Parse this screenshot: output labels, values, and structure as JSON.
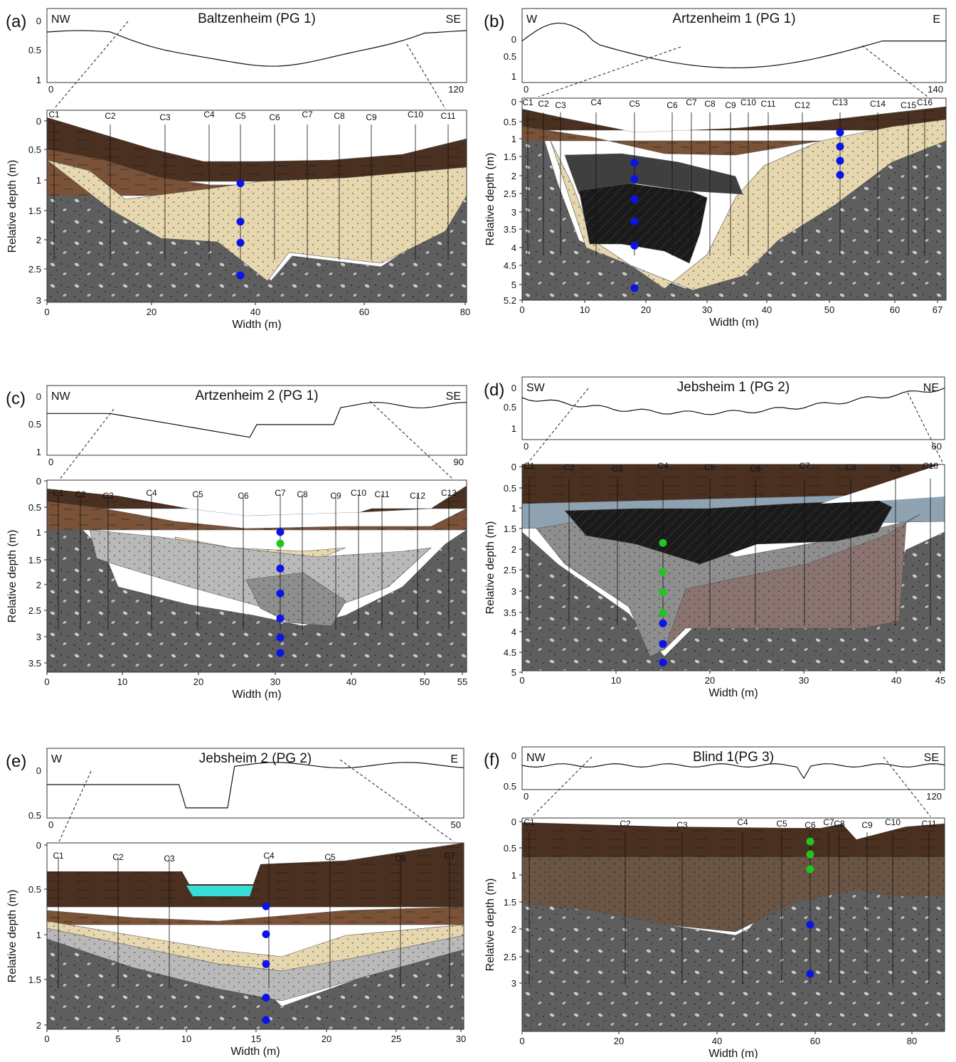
{
  "colors": {
    "topsoil": "#4a3020",
    "brown": "#7a5238",
    "sand": "#e6d7ae",
    "gravel": "#5e5e5e",
    "grey_silt": "#b9b9b9",
    "mid_grey": "#8e8e8e",
    "peat": "#1a1a1a",
    "dark_grey": "#3f3f3f",
    "blue_clay": "#8ea2b2",
    "pink": "#8a7470",
    "mid_brown": "#6a5444",
    "water": "#38dcd9",
    "sample_blue": "#0a14e6",
    "sample_green": "#22c422"
  },
  "panels": [
    {
      "label": "(a)",
      "title": "Baltzenheim (PG 1)",
      "dir_left": "NW",
      "dir_right": "SE",
      "profile_yticks": [
        "0",
        "0.5",
        "1"
      ],
      "profile_xticks": [
        "0",
        "120"
      ],
      "depth_ticks": [
        "0",
        "0.5",
        "1",
        "1.5",
        "2",
        "2.5",
        "3"
      ],
      "width_ticks": [
        "0",
        "20",
        "40",
        "60",
        "80"
      ],
      "ylabel": "Relative depth (m)",
      "xlabel": "Width (m)",
      "cores": [
        "C1",
        "C2",
        "C3",
        "C4",
        "C5",
        "C6",
        "C7",
        "C8",
        "C9",
        "C10",
        "C11"
      ]
    },
    {
      "label": "(b)",
      "title": "Artzenheim 1 (PG 1)",
      "dir_left": "W",
      "dir_right": "E",
      "profile_yticks": [
        "0",
        "0.5",
        "1"
      ],
      "profile_xticks": [
        "0",
        "140"
      ],
      "depth_ticks": [
        "0",
        "0.5",
        "1",
        "1.5",
        "2",
        "2.5",
        "3",
        "3.5",
        "4",
        "4.5",
        "5",
        "5.2"
      ],
      "width_ticks": [
        "0",
        "10",
        "20",
        "30",
        "40",
        "50",
        "60",
        "67"
      ],
      "ylabel": "Relative depth (m)",
      "xlabel": "Width (m)",
      "cores": [
        "C1",
        "C2",
        "C3",
        "C4",
        "C5",
        "C6",
        "C7",
        "C8",
        "C9",
        "C10",
        "C11",
        "C12",
        "C13",
        "C14",
        "C15",
        "C16"
      ]
    },
    {
      "label": "(c)",
      "title": "Artzenheim 2 (PG 1)",
      "dir_left": "NW",
      "dir_right": "SE",
      "profile_yticks": [
        "0",
        "0.5",
        "1"
      ],
      "profile_xticks": [
        "0",
        "90"
      ],
      "depth_ticks": [
        "0",
        "0.5",
        "1",
        "1.5",
        "2",
        "2.5",
        "3",
        "3.5"
      ],
      "width_ticks": [
        "0",
        "10",
        "20",
        "30",
        "40",
        "50",
        "55"
      ],
      "ylabel": "Relative depth (m)",
      "xlabel": "Width (m)",
      "cores": [
        "C1",
        "C2",
        "C3",
        "C4",
        "C5",
        "C6",
        "C7",
        "C8",
        "C9",
        "C10",
        "C11",
        "C12",
        "C13"
      ]
    },
    {
      "label": "(d)",
      "title": "Jebsheim 1 (PG 2)",
      "dir_left": "SW",
      "dir_right": "NE",
      "profile_yticks": [
        "0",
        "0.5",
        "1"
      ],
      "profile_xticks": [
        "0",
        "60"
      ],
      "depth_ticks": [
        "0",
        "0.5",
        "1",
        "1.5",
        "2",
        "2.5",
        "3",
        "3.5",
        "4",
        "4.5",
        "5"
      ],
      "width_ticks": [
        "0",
        "10",
        "20",
        "30",
        "40",
        "45"
      ],
      "ylabel": "Relative depth (m)",
      "xlabel": "Width (m)",
      "cores": [
        "C1",
        "C2",
        "C3",
        "C4",
        "C5",
        "C6",
        "C7",
        "C8",
        "C9",
        "C10"
      ]
    },
    {
      "label": "(e)",
      "title": "Jebsheim 2 (PG 2)",
      "dir_left": "W",
      "dir_right": "E",
      "profile_yticks": [
        "0",
        "0.5"
      ],
      "profile_xticks": [
        "0",
        "50"
      ],
      "depth_ticks": [
        "0",
        "0.5",
        "1",
        "1.5",
        "2"
      ],
      "width_ticks": [
        "0",
        "5",
        "10",
        "15",
        "20",
        "25",
        "30"
      ],
      "ylabel": "Relative depth (m)",
      "xlabel": "Width (m)",
      "cores": [
        "C1",
        "C2",
        "C3",
        "C4",
        "C5",
        "C6",
        "C7"
      ]
    },
    {
      "label": "(f)",
      "title": "Blind 1(PG 3)",
      "dir_left": "NW",
      "dir_right": "SE",
      "profile_yticks": [
        "0",
        "0.5"
      ],
      "profile_xticks": [
        "0",
        "120"
      ],
      "depth_ticks": [
        "0",
        "0.5",
        "1",
        "1.5",
        "2",
        "2.5",
        "3"
      ],
      "width_ticks": [
        "0",
        "20",
        "40",
        "60",
        "80"
      ],
      "ylabel": "Relative depth (m)",
      "xlabel": "Width (m)",
      "cores": [
        "C1",
        "C2",
        "C3",
        "C4",
        "C5",
        "C6",
        "C7",
        "C8",
        "C9",
        "C10",
        "C11"
      ]
    }
  ]
}
